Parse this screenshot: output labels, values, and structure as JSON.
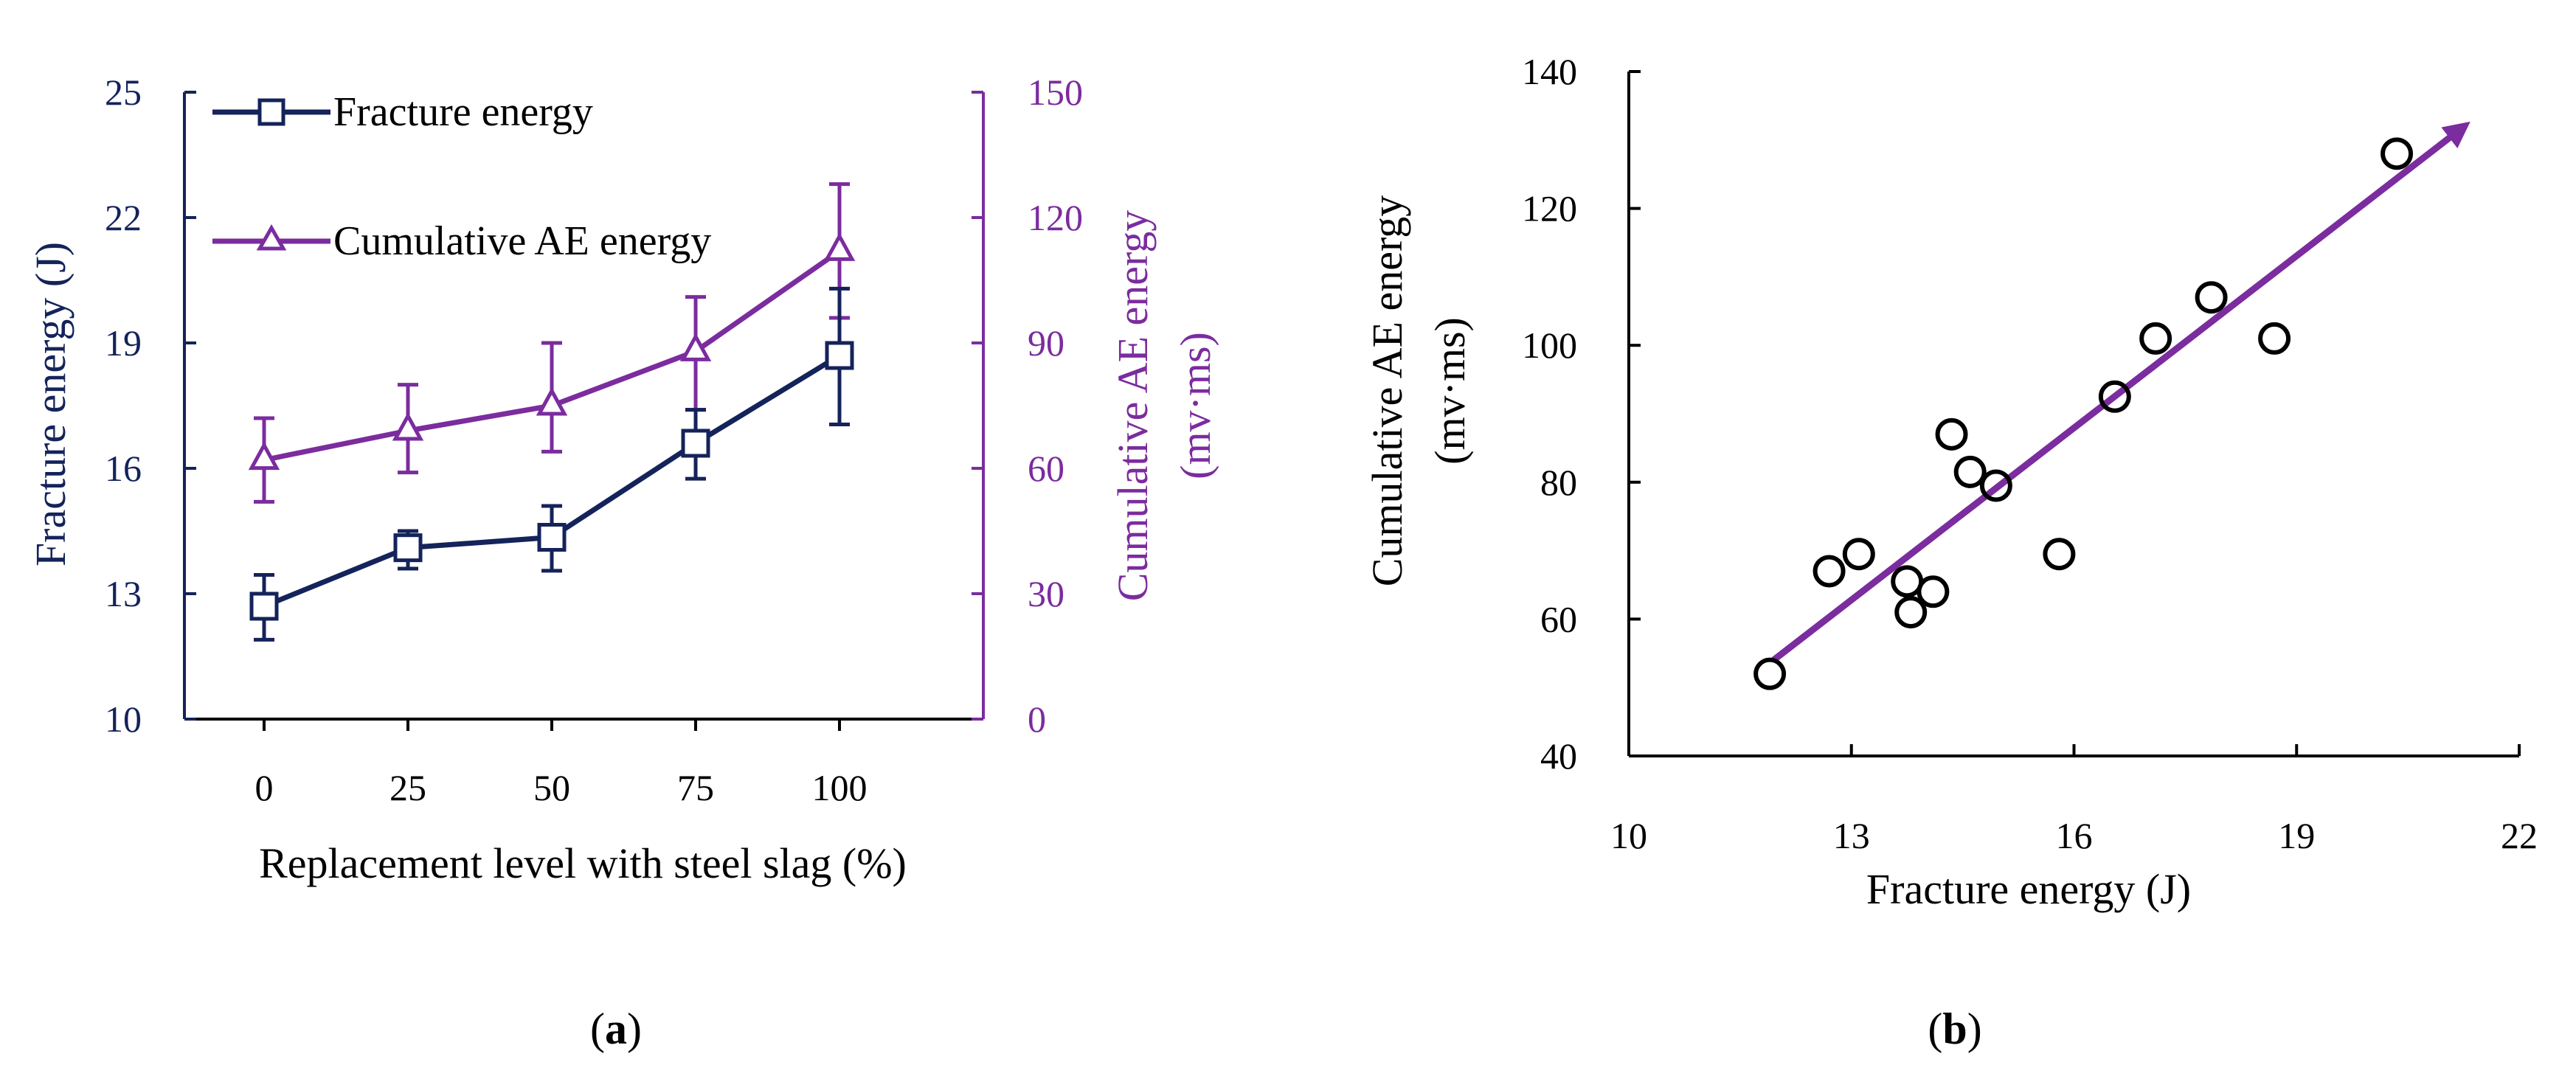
{
  "colors": {
    "fracture": "#14235a",
    "ae": "#7b2c9e",
    "axis": "#000000"
  },
  "panels": {
    "a": {
      "label_open": "(",
      "label_letter": "a",
      "label_close": ")"
    },
    "b": {
      "label_open": "(",
      "label_letter": "b",
      "label_close": ")"
    }
  },
  "chart_data": [
    {
      "id": "a",
      "type": "line",
      "xlabel": "Replacement level with steel slag (%)",
      "categories": [
        "0",
        "25",
        "50",
        "75",
        "100"
      ],
      "y_left": {
        "label": "Fracture energy (J)",
        "lim": [
          10,
          25
        ],
        "ticks": [
          10,
          13,
          16,
          19,
          22,
          25
        ]
      },
      "y_right": {
        "label_line1": "Cumulative AE energy",
        "label_line2": "(mv·ms)",
        "lim": [
          0,
          150
        ],
        "ticks": [
          0,
          30,
          60,
          90,
          120,
          150
        ]
      },
      "legend": {
        "position": "top-left"
      },
      "series": [
        {
          "name": "Fracture energy",
          "axis": "left",
          "marker": "square",
          "values": [
            12.7,
            14.1,
            14.35,
            16.6,
            18.7
          ],
          "error_low": [
            11.9,
            13.6,
            13.55,
            15.75,
            17.05
          ],
          "error_high": [
            13.45,
            14.5,
            15.1,
            17.4,
            20.3
          ]
        },
        {
          "name": "Cumulative AE energy",
          "axis": "right",
          "marker": "triangle",
          "values": [
            62,
            69,
            75,
            88,
            112
          ],
          "error_low": [
            52,
            59,
            64,
            74,
            96
          ],
          "error_high": [
            72,
            80,
            90,
            101,
            128
          ]
        }
      ]
    },
    {
      "id": "b",
      "type": "scatter",
      "xlabel": "Fracture energy (J)",
      "ylabel_line1": "Cumulative AE energy",
      "ylabel_line2": "(mv·ms)",
      "xlim": [
        10,
        22
      ],
      "ylim": [
        40,
        140
      ],
      "xticks": [
        10,
        13,
        16,
        19,
        22
      ],
      "yticks": [
        40,
        60,
        80,
        100,
        120,
        140
      ],
      "points": [
        [
          11.9,
          52
        ],
        [
          12.7,
          67
        ],
        [
          13.1,
          69.5
        ],
        [
          13.75,
          65.5
        ],
        [
          13.8,
          61
        ],
        [
          14.1,
          64
        ],
        [
          14.35,
          87
        ],
        [
          14.6,
          81.5
        ],
        [
          14.95,
          79.5
        ],
        [
          15.8,
          69.5
        ],
        [
          16.55,
          92.5
        ],
        [
          17.1,
          101
        ],
        [
          17.85,
          107
        ],
        [
          18.7,
          101
        ],
        [
          20.35,
          128
        ]
      ],
      "trend": {
        "x": [
          11.95,
          21.2
        ],
        "y": [
          54,
          131.5
        ]
      }
    }
  ]
}
